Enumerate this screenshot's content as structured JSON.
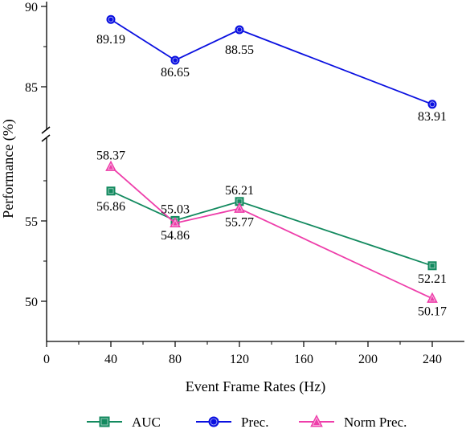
{
  "chart_data": {
    "type": "line",
    "xlabel": "Event Frame Rates (Hz)",
    "ylabel": "Performance (%)",
    "x_ticks": [
      0,
      40,
      80,
      120,
      160,
      200,
      240
    ],
    "xlim": [
      0,
      260
    ],
    "y_axis_broken": true,
    "upper_panel": {
      "ylim": [
        82.5,
        90
      ],
      "y_ticks": [
        85,
        90
      ]
    },
    "lower_panel": {
      "ylim": [
        47.5,
        60
      ],
      "y_ticks": [
        50,
        55
      ]
    },
    "legend_position": "bottom",
    "grid": false,
    "series": [
      {
        "name": "AUC",
        "marker": "square",
        "color": "#138a5f",
        "x": [
          40,
          80,
          120,
          240
        ],
        "values": [
          56.86,
          55.03,
          56.21,
          52.21
        ],
        "labels": [
          "56.86",
          "55.03",
          "56.21",
          "52.21"
        ]
      },
      {
        "name": "Prec.",
        "marker": "circle",
        "color": "#0a10e0",
        "x": [
          40,
          80,
          120,
          240
        ],
        "values": [
          89.19,
          86.65,
          88.55,
          83.91
        ],
        "labels": [
          "89.19",
          "86.65",
          "88.55",
          "83.91"
        ]
      },
      {
        "name": "Norm Prec.",
        "marker": "triangle",
        "color": "#ee3eaa",
        "x": [
          40,
          80,
          120,
          240
        ],
        "values": [
          58.37,
          54.86,
          55.77,
          50.17
        ],
        "labels": [
          "58.37",
          "54.86",
          "55.77",
          "50.17"
        ]
      }
    ]
  }
}
